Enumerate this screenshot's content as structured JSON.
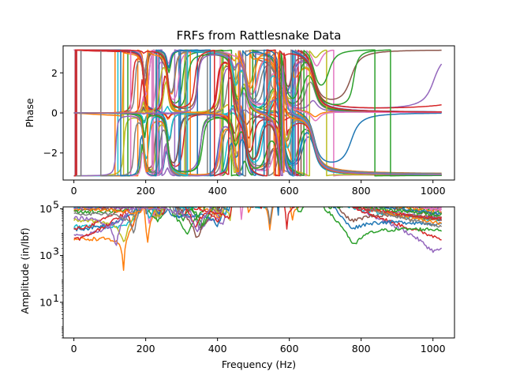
{
  "title": "FRFs from Rattlesnake Data",
  "colors": [
    "#1f77b4",
    "#ff7f0e",
    "#2ca02c",
    "#d62728",
    "#9467bd",
    "#8c564b",
    "#e377c2",
    "#7f7f7f",
    "#bcbd22",
    "#17becf"
  ],
  "chart_data": [
    {
      "type": "line",
      "ylabel": "Phase",
      "xlabel": "",
      "xlim": [
        -30,
        1060
      ],
      "ylim": [
        -3.35,
        3.35
      ],
      "x_ticks": [
        0,
        200,
        400,
        600,
        800,
        1000
      ],
      "x_tick_labels": [
        "0",
        "200",
        "400",
        "600",
        "800",
        "1000"
      ],
      "y_ticks": [
        -2,
        0,
        2
      ],
      "y_tick_labels": [
        "−2",
        "0",
        "2"
      ],
      "series_count": 45,
      "frequency_range": [
        0,
        1024
      ],
      "phase_range": [
        -3.14159,
        3.14159
      ],
      "resonances_hz": [
        195,
        262,
        445,
        480,
        570,
        585,
        670
      ]
    },
    {
      "type": "line",
      "xlabel": "Frequency (Hz)",
      "ylabel": "Amplitude (in/lbf)",
      "yscale": "log",
      "xlim": [
        -30,
        1060
      ],
      "ylim": [
        0.3,
        120000
      ],
      "x_ticks": [
        0,
        200,
        400,
        600,
        800,
        1000
      ],
      "x_tick_labels": [
        "0",
        "200",
        "400",
        "600",
        "800",
        "1000"
      ],
      "y_ticks": [
        10,
        1000,
        100000
      ],
      "y_tick_labels": [
        "10",
        "10",
        "10"
      ],
      "y_tick_exponents": [
        "1",
        "3",
        "5"
      ],
      "series_count": 45,
      "frequency_range": [
        0,
        1024
      ],
      "resonances_hz": [
        195,
        262,
        445,
        480,
        570,
        585,
        670
      ],
      "peak_amplitudes": [
        10000,
        6000,
        60000,
        15000,
        20000,
        40000,
        5000
      ]
    }
  ]
}
